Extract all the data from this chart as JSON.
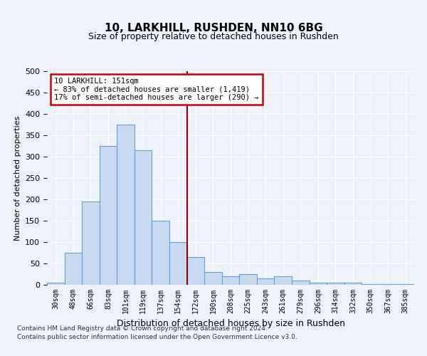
{
  "title1": "10, LARKHILL, RUSHDEN, NN10 6BG",
  "title2": "Size of property relative to detached houses in Rushden",
  "xlabel": "Distribution of detached houses by size in Rushden",
  "ylabel": "Number of detached properties",
  "bar_color": "#c9d9f0",
  "bar_edge_color": "#6a9fd8",
  "vline_color": "#8b0000",
  "annotation_text1": "10 LARKHILL: 151sqm",
  "annotation_text2": "← 83% of detached houses are smaller (1,419)",
  "annotation_text3": "17% of semi-detached houses are larger (290) →",
  "categories": [
    "30sqm",
    "48sqm",
    "66sqm",
    "83sqm",
    "101sqm",
    "119sqm",
    "137sqm",
    "154sqm",
    "172sqm",
    "190sqm",
    "208sqm",
    "225sqm",
    "243sqm",
    "261sqm",
    "279sqm",
    "296sqm",
    "314sqm",
    "332sqm",
    "350sqm",
    "367sqm",
    "385sqm"
  ],
  "values": [
    5,
    75,
    195,
    325,
    375,
    315,
    150,
    100,
    65,
    30,
    20,
    25,
    15,
    20,
    10,
    5,
    5,
    5,
    2,
    2,
    1
  ],
  "ylim": [
    0,
    500
  ],
  "yticks": [
    0,
    50,
    100,
    150,
    200,
    250,
    300,
    350,
    400,
    450,
    500
  ],
  "footnote1": "Contains HM Land Registry data © Crown copyright and database right 2024.",
  "footnote2": "Contains public sector information licensed under the Open Government Licence v3.0.",
  "background_color": "#eef2fb",
  "plot_background": "#eef2fb",
  "vline_x": 7.5
}
